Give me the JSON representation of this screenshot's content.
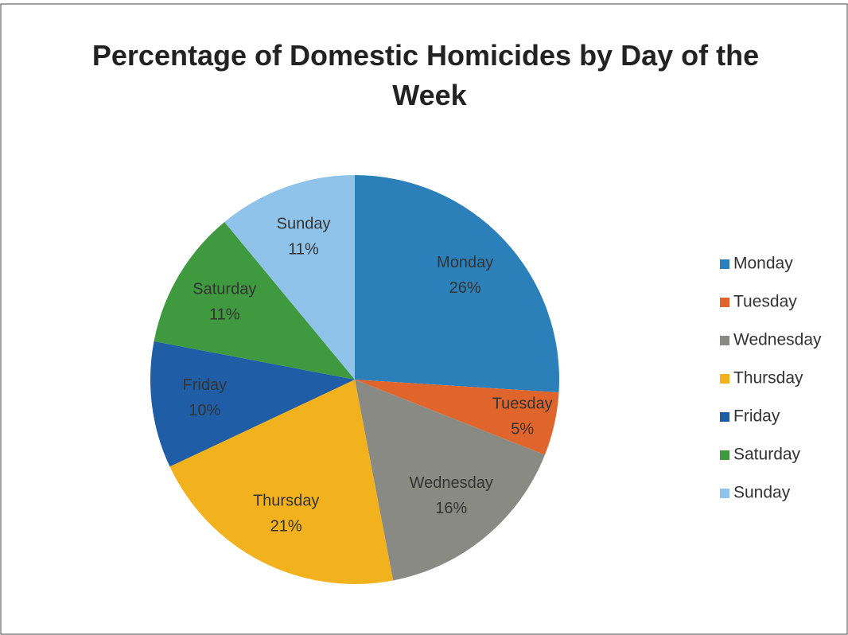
{
  "chart_data": {
    "type": "pie",
    "title": "Percentage of Domestic Homicides by Day of the Week",
    "categories": [
      "Monday",
      "Tuesday",
      "Wednesday",
      "Thursday",
      "Friday",
      "Saturday",
      "Sunday"
    ],
    "values": [
      26,
      5,
      16,
      21,
      10,
      11,
      11
    ],
    "value_labels": [
      "26%",
      "5%",
      "16%",
      "21%",
      "10%",
      "11%",
      "11%"
    ],
    "colors": [
      "#2b80ba",
      "#e0652c",
      "#8a8a85",
      "#f2b21e",
      "#1f5ea6",
      "#3e993f",
      "#90c3ea"
    ],
    "legend": "right"
  }
}
